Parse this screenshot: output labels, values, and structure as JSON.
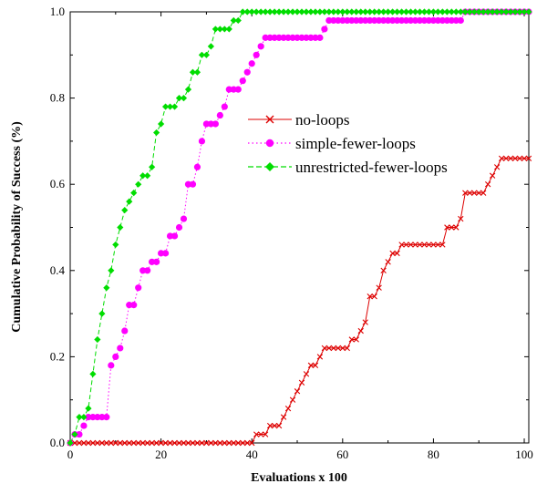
{
  "chart_data": {
    "type": "line",
    "title": "",
    "xlabel": "Evaluations x 100",
    "ylabel": "Cumulative Probability of Success (%)",
    "xlim": [
      0,
      101
    ],
    "ylim": [
      0,
      1.0
    ],
    "xticks": [
      0,
      20,
      40,
      60,
      80,
      100
    ],
    "xtick_labels": [
      "0",
      "20",
      "40",
      "60",
      "80",
      "100"
    ],
    "yticks": [
      0.0,
      0.2,
      0.4,
      0.6,
      0.8,
      1.0
    ],
    "ytick_labels": [
      "0.0",
      "0.2",
      "0.4",
      "0.6",
      "0.8",
      "1.0"
    ],
    "grid": false,
    "legend_position": "center-right",
    "series": [
      {
        "name": "no-loops",
        "color": "#dd0000",
        "dash": "solid",
        "marker": "x",
        "steps": [
          [
            0,
            0
          ],
          [
            41,
            0.02
          ],
          [
            44,
            0.04
          ],
          [
            47,
            0.06
          ],
          [
            48,
            0.08
          ],
          [
            49,
            0.1
          ],
          [
            50,
            0.12
          ],
          [
            51,
            0.14
          ],
          [
            52,
            0.16
          ],
          [
            53,
            0.18
          ],
          [
            55,
            0.2
          ],
          [
            56,
            0.22
          ],
          [
            62,
            0.24
          ],
          [
            64,
            0.26
          ],
          [
            65,
            0.28
          ],
          [
            66,
            0.34
          ],
          [
            68,
            0.36
          ],
          [
            69,
            0.4
          ],
          [
            70,
            0.42
          ],
          [
            71,
            0.44
          ],
          [
            73,
            0.46
          ],
          [
            83,
            0.5
          ],
          [
            86,
            0.52
          ],
          [
            87,
            0.58
          ],
          [
            92,
            0.6
          ],
          [
            93,
            0.62
          ],
          [
            94,
            0.64
          ],
          [
            95,
            0.66
          ],
          [
            101,
            0.66
          ]
        ]
      },
      {
        "name": "simple-fewer-loops",
        "color": "#ff00ff",
        "dash": "dotted",
        "marker": "circle",
        "steps": [
          [
            0,
            0
          ],
          [
            1,
            0.02
          ],
          [
            3,
            0.04
          ],
          [
            4,
            0.06
          ],
          [
            9,
            0.18
          ],
          [
            10,
            0.2
          ],
          [
            11,
            0.22
          ],
          [
            12,
            0.26
          ],
          [
            13,
            0.32
          ],
          [
            15,
            0.36
          ],
          [
            16,
            0.4
          ],
          [
            18,
            0.42
          ],
          [
            20,
            0.44
          ],
          [
            22,
            0.48
          ],
          [
            24,
            0.5
          ],
          [
            25,
            0.52
          ],
          [
            26,
            0.6
          ],
          [
            28,
            0.64
          ],
          [
            29,
            0.7
          ],
          [
            30,
            0.74
          ],
          [
            33,
            0.76
          ],
          [
            34,
            0.78
          ],
          [
            35,
            0.82
          ],
          [
            38,
            0.84
          ],
          [
            39,
            0.86
          ],
          [
            40,
            0.88
          ],
          [
            41,
            0.9
          ],
          [
            42,
            0.92
          ],
          [
            43,
            0.94
          ],
          [
            56,
            0.96
          ],
          [
            57,
            0.98
          ],
          [
            85,
            0.98
          ],
          [
            87,
            1.0
          ],
          [
            101,
            1.0
          ]
        ]
      },
      {
        "name": "unrestricted-fewer-loops",
        "color": "#00dd00",
        "dash": "dashed",
        "marker": "diamond",
        "steps": [
          [
            0,
            0
          ],
          [
            1,
            0.02
          ],
          [
            2,
            0.06
          ],
          [
            4,
            0.08
          ],
          [
            5,
            0.16
          ],
          [
            6,
            0.24
          ],
          [
            7,
            0.3
          ],
          [
            8,
            0.36
          ],
          [
            9,
            0.4
          ],
          [
            10,
            0.46
          ],
          [
            11,
            0.5
          ],
          [
            12,
            0.54
          ],
          [
            13,
            0.56
          ],
          [
            14,
            0.58
          ],
          [
            15,
            0.6
          ],
          [
            16,
            0.62
          ],
          [
            18,
            0.64
          ],
          [
            19,
            0.72
          ],
          [
            20,
            0.74
          ],
          [
            21,
            0.78
          ],
          [
            24,
            0.8
          ],
          [
            26,
            0.82
          ],
          [
            27,
            0.86
          ],
          [
            29,
            0.9
          ],
          [
            31,
            0.92
          ],
          [
            32,
            0.96
          ],
          [
            36,
            0.98
          ],
          [
            38,
            1.0
          ],
          [
            101,
            1.0
          ]
        ]
      }
    ]
  }
}
